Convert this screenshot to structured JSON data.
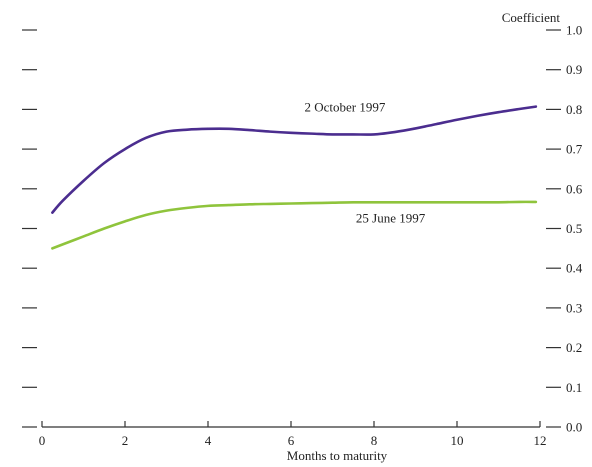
{
  "chart_data": {
    "type": "line",
    "title": "",
    "xlabel": "Months to maturity",
    "ylabel": "Coefficient",
    "xlim": [
      0,
      12
    ],
    "ylim": [
      0.0,
      1.0
    ],
    "x_ticks": [
      0,
      2,
      4,
      6,
      8,
      10,
      12
    ],
    "x_tick_labels": [
      "0",
      "2",
      "4",
      "6",
      "8",
      "10",
      "12"
    ],
    "y_ticks": [
      0.0,
      0.1,
      0.2,
      0.3,
      0.4,
      0.5,
      0.6,
      0.7,
      0.8,
      0.9,
      1.0
    ],
    "y_tick_labels": [
      "0.0",
      "0.1",
      "0.2",
      "0.3",
      "0.4",
      "0.5",
      "0.6",
      "0.7",
      "0.8",
      "0.9",
      "1.0"
    ],
    "grid": false,
    "legend": "none",
    "series": [
      {
        "name": "2 October 1997",
        "color": "#4b2d8f",
        "x": [
          0.25,
          0.5,
          1,
          1.5,
          2,
          2.5,
          3,
          3.5,
          4,
          4.5,
          5,
          5.5,
          6,
          6.5,
          7,
          7.5,
          8,
          8.5,
          9,
          9.5,
          10,
          10.5,
          11,
          11.5,
          11.9
        ],
        "y": [
          0.54,
          0.57,
          0.62,
          0.665,
          0.7,
          0.728,
          0.744,
          0.749,
          0.751,
          0.751,
          0.748,
          0.744,
          0.741,
          0.739,
          0.737,
          0.737,
          0.737,
          0.743,
          0.752,
          0.763,
          0.774,
          0.784,
          0.793,
          0.801,
          0.807
        ]
      },
      {
        "name": "25 June 1997",
        "color": "#8fc43c",
        "x": [
          0.25,
          0.5,
          1,
          1.5,
          2,
          2.5,
          3,
          3.5,
          4,
          4.5,
          5,
          5.5,
          6,
          6.5,
          7,
          7.5,
          8,
          8.5,
          9,
          9.5,
          10,
          10.5,
          11,
          11.5,
          11.9
        ],
        "y": [
          0.45,
          0.46,
          0.48,
          0.5,
          0.518,
          0.534,
          0.545,
          0.552,
          0.557,
          0.559,
          0.561,
          0.562,
          0.563,
          0.564,
          0.565,
          0.566,
          0.566,
          0.566,
          0.566,
          0.566,
          0.566,
          0.566,
          0.566,
          0.567,
          0.567
        ]
      }
    ],
    "annotations": [
      {
        "text": "2 October 1997",
        "x": 7.3,
        "y": 0.795
      },
      {
        "text": "25 June 1997",
        "x": 8.4,
        "y": 0.515
      }
    ]
  }
}
